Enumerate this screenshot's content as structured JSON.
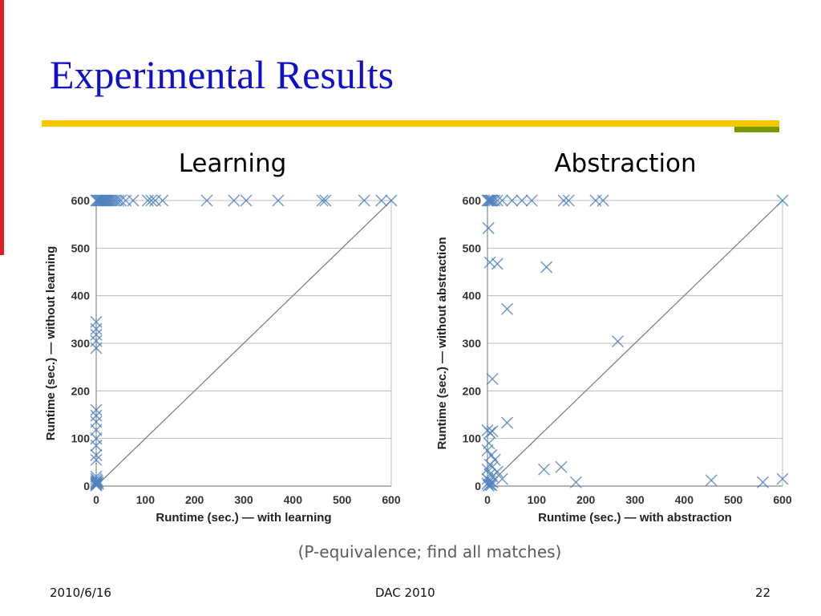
{
  "slide": {
    "title": "Experimental Results",
    "caption": "(P-equivalence; find all matches)",
    "footer": {
      "date": "2010/6/16",
      "event": "DAC 2010",
      "page": "22"
    },
    "colors": {
      "title": "#1010c8",
      "accent_bar": "#e31b23",
      "rule_yellow": "#f7c800",
      "rule_green": "#7a9a01",
      "marker": "#4f81bd"
    }
  },
  "chart_data": [
    {
      "heading": "Learning",
      "type": "scatter",
      "xlabel": "Runtime (sec.) — with learning",
      "ylabel": "Runtime (sec.) — without learning",
      "xlim": [
        0,
        600
      ],
      "ylim": [
        0,
        600
      ],
      "xticks": [
        "0",
        "100",
        "200",
        "300",
        "400",
        "500",
        "600"
      ],
      "yticks": [
        "0",
        "100",
        "200",
        "300",
        "400",
        "500",
        "600"
      ],
      "grid": "horizontal",
      "reference_line": "y = x",
      "marker": "x",
      "points": [
        [
          0,
          600
        ],
        [
          2,
          600
        ],
        [
          4,
          600
        ],
        [
          6,
          600
        ],
        [
          8,
          600
        ],
        [
          10,
          600
        ],
        [
          12,
          600
        ],
        [
          14,
          600
        ],
        [
          16,
          600
        ],
        [
          18,
          600
        ],
        [
          20,
          600
        ],
        [
          22,
          600
        ],
        [
          25,
          600
        ],
        [
          28,
          600
        ],
        [
          32,
          600
        ],
        [
          36,
          600
        ],
        [
          40,
          600
        ],
        [
          45,
          600
        ],
        [
          50,
          600
        ],
        [
          60,
          600
        ],
        [
          75,
          600
        ],
        [
          105,
          600
        ],
        [
          112,
          600
        ],
        [
          120,
          600
        ],
        [
          135,
          600
        ],
        [
          225,
          600
        ],
        [
          280,
          600
        ],
        [
          305,
          600
        ],
        [
          370,
          600
        ],
        [
          460,
          600
        ],
        [
          466,
          600
        ],
        [
          545,
          600
        ],
        [
          580,
          600
        ],
        [
          600,
          600
        ],
        [
          0,
          345
        ],
        [
          0,
          330
        ],
        [
          0,
          318
        ],
        [
          0,
          305
        ],
        [
          0,
          290
        ],
        [
          0,
          160
        ],
        [
          0,
          148
        ],
        [
          0,
          135
        ],
        [
          0,
          118
        ],
        [
          0,
          100
        ],
        [
          0,
          85
        ],
        [
          0,
          65
        ],
        [
          0,
          55
        ],
        [
          0,
          20
        ],
        [
          0,
          15
        ],
        [
          0,
          10
        ],
        [
          0,
          7
        ],
        [
          0,
          5
        ],
        [
          0,
          3
        ],
        [
          0,
          1
        ],
        [
          2,
          12
        ],
        [
          3,
          8
        ],
        [
          4,
          5
        ]
      ]
    },
    {
      "heading": "Abstraction",
      "type": "scatter",
      "xlabel": "Runtime (sec.) — with abstraction",
      "ylabel": "Runtime (sec.) — without abstraction",
      "xlim": [
        0,
        600
      ],
      "ylim": [
        0,
        600
      ],
      "xticks": [
        "0",
        "100",
        "200",
        "300",
        "400",
        "500",
        "600"
      ],
      "yticks": [
        "0",
        "100",
        "200",
        "300",
        "400",
        "500",
        "600"
      ],
      "grid": "horizontal",
      "reference_line": "y = x",
      "marker": "x",
      "points": [
        [
          0,
          600
        ],
        [
          2,
          600
        ],
        [
          4,
          600
        ],
        [
          6,
          600
        ],
        [
          8,
          600
        ],
        [
          10,
          600
        ],
        [
          14,
          600
        ],
        [
          20,
          600
        ],
        [
          30,
          600
        ],
        [
          50,
          600
        ],
        [
          70,
          600
        ],
        [
          90,
          600
        ],
        [
          155,
          600
        ],
        [
          165,
          600
        ],
        [
          220,
          600
        ],
        [
          235,
          600
        ],
        [
          600,
          600
        ],
        [
          2,
          542
        ],
        [
          5,
          470
        ],
        [
          20,
          467
        ],
        [
          120,
          460
        ],
        [
          40,
          372
        ],
        [
          265,
          304
        ],
        [
          10,
          225
        ],
        [
          40,
          133
        ],
        [
          0,
          117
        ],
        [
          5,
          112
        ],
        [
          10,
          115
        ],
        [
          3,
          90
        ],
        [
          0,
          75
        ],
        [
          8,
          65
        ],
        [
          15,
          55
        ],
        [
          5,
          45
        ],
        [
          10,
          40
        ],
        [
          0,
          35
        ],
        [
          20,
          30
        ],
        [
          5,
          25
        ],
        [
          10,
          20
        ],
        [
          0,
          15
        ],
        [
          30,
          15
        ],
        [
          5,
          10
        ],
        [
          10,
          8
        ],
        [
          0,
          5
        ],
        [
          5,
          3
        ],
        [
          2,
          1
        ],
        [
          8,
          2
        ],
        [
          115,
          35
        ],
        [
          150,
          40
        ],
        [
          180,
          8
        ],
        [
          455,
          12
        ],
        [
          560,
          8
        ],
        [
          600,
          15
        ]
      ]
    }
  ]
}
